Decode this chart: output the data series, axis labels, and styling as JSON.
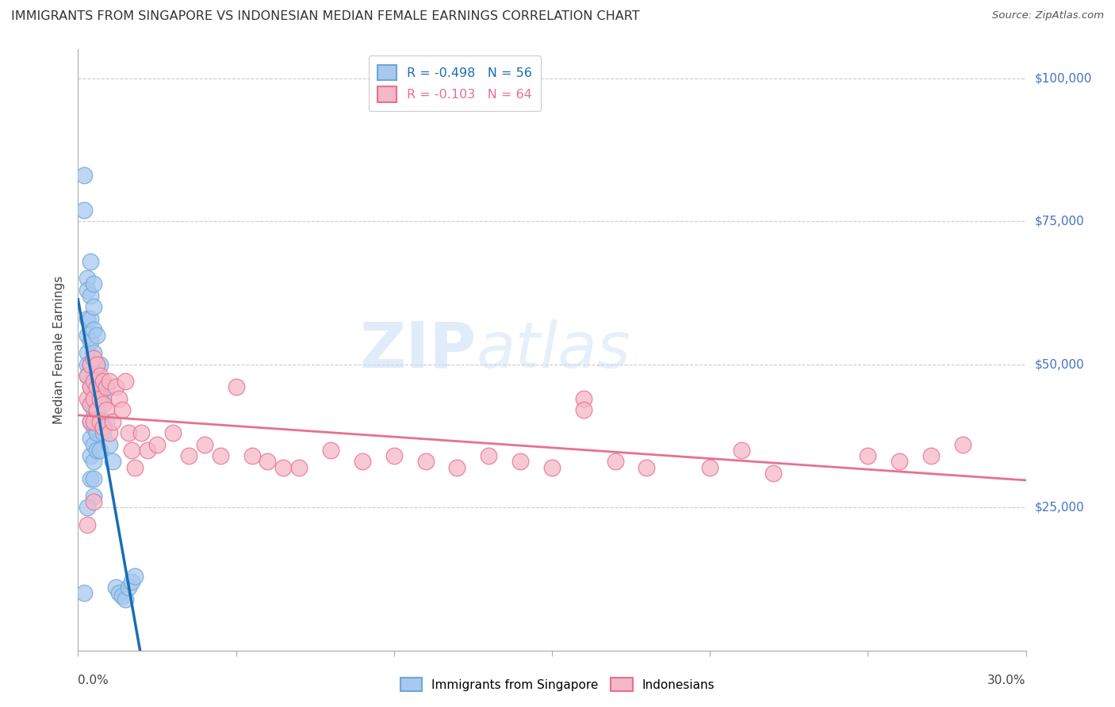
{
  "title": "IMMIGRANTS FROM SINGAPORE VS INDONESIAN MEDIAN FEMALE EARNINGS CORRELATION CHART",
  "source": "Source: ZipAtlas.com",
  "ylabel": "Median Female Earnings",
  "ytick_labels": [
    "$25,000",
    "$50,000",
    "$75,000",
    "$100,000"
  ],
  "ytick_values": [
    25000,
    50000,
    75000,
    100000
  ],
  "ylim": [
    0,
    105000
  ],
  "xlim": [
    0,
    0.3
  ],
  "legend1_r": "R = -0.498",
  "legend1_n": "N = 56",
  "legend2_r": "R = -0.103",
  "legend2_n": "N = 64",
  "singapore_color": "#a8c8f0",
  "singapore_edge_color": "#6aaad4",
  "singapore_line_color": "#1a6db5",
  "indonesian_color": "#f5b8c8",
  "indonesian_edge_color": "#e87090",
  "indonesian_line_color": "#e87090",
  "watermark_zip": "ZIP",
  "watermark_atlas": "atlas",
  "sg_x": [
    0.002,
    0.002,
    0.003,
    0.003,
    0.003,
    0.003,
    0.003,
    0.003,
    0.003,
    0.004,
    0.004,
    0.004,
    0.004,
    0.004,
    0.004,
    0.004,
    0.004,
    0.004,
    0.004,
    0.004,
    0.005,
    0.005,
    0.005,
    0.005,
    0.005,
    0.005,
    0.005,
    0.005,
    0.005,
    0.005,
    0.005,
    0.005,
    0.006,
    0.006,
    0.006,
    0.006,
    0.006,
    0.006,
    0.007,
    0.007,
    0.007,
    0.007,
    0.008,
    0.008,
    0.009,
    0.01,
    0.011,
    0.012,
    0.013,
    0.014,
    0.015,
    0.016,
    0.017,
    0.018,
    0.002,
    0.003
  ],
  "sg_y": [
    83000,
    77000,
    65000,
    63000,
    58000,
    55000,
    52000,
    50000,
    48000,
    68000,
    62000,
    58000,
    54000,
    50000,
    46000,
    43000,
    40000,
    37000,
    34000,
    30000,
    64000,
    60000,
    56000,
    52000,
    48000,
    45000,
    42000,
    39000,
    36000,
    33000,
    30000,
    27000,
    55000,
    50000,
    46000,
    42000,
    38000,
    35000,
    50000,
    45000,
    40000,
    35000,
    44000,
    38000,
    40000,
    36000,
    33000,
    11000,
    10000,
    9500,
    9000,
    11000,
    12000,
    13000,
    10000,
    25000
  ],
  "ind_x": [
    0.003,
    0.003,
    0.004,
    0.004,
    0.004,
    0.004,
    0.005,
    0.005,
    0.005,
    0.005,
    0.006,
    0.006,
    0.006,
    0.007,
    0.007,
    0.007,
    0.008,
    0.008,
    0.008,
    0.009,
    0.009,
    0.01,
    0.01,
    0.011,
    0.012,
    0.013,
    0.014,
    0.015,
    0.016,
    0.017,
    0.018,
    0.02,
    0.022,
    0.025,
    0.03,
    0.035,
    0.04,
    0.045,
    0.05,
    0.055,
    0.06,
    0.065,
    0.07,
    0.08,
    0.09,
    0.1,
    0.11,
    0.12,
    0.13,
    0.14,
    0.15,
    0.16,
    0.17,
    0.18,
    0.2,
    0.21,
    0.22,
    0.25,
    0.26,
    0.27,
    0.28,
    0.003,
    0.005,
    0.16
  ],
  "ind_y": [
    48000,
    44000,
    50000,
    46000,
    43000,
    40000,
    51000,
    47000,
    44000,
    40000,
    50000,
    46000,
    42000,
    48000,
    44000,
    40000,
    47000,
    43000,
    39000,
    46000,
    42000,
    47000,
    38000,
    40000,
    46000,
    44000,
    42000,
    47000,
    38000,
    35000,
    32000,
    38000,
    35000,
    36000,
    38000,
    34000,
    36000,
    34000,
    46000,
    34000,
    33000,
    32000,
    32000,
    35000,
    33000,
    34000,
    33000,
    32000,
    34000,
    33000,
    32000,
    44000,
    33000,
    32000,
    32000,
    35000,
    31000,
    34000,
    33000,
    34000,
    36000,
    22000,
    26000,
    42000
  ]
}
